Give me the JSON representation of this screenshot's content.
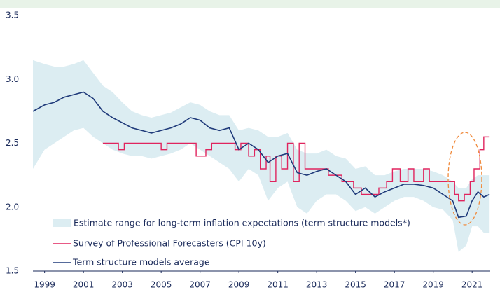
{
  "chart_data": {
    "type": "line",
    "xlim": [
      1998.4,
      2021.93
    ],
    "ylim": [
      1.5,
      3.5
    ],
    "xticks": [
      1999,
      2001,
      2003,
      2005,
      2007,
      2009,
      2011,
      2013,
      2015,
      2017,
      2019,
      2021
    ],
    "yticks": [
      1.5,
      {
        "value": 2,
        "label": "2.0"
      },
      2.5,
      {
        "value": 3,
        "label": "3.0"
      },
      3.5
    ],
    "band": {
      "name": "Estimate range for long-term inflation expectations (term structure models*)",
      "color": "#dcedf2",
      "x": [
        1998.4,
        1999,
        1999.5,
        2000,
        2000.5,
        2001,
        2001.5,
        2002,
        2002.5,
        2003,
        2003.5,
        2004,
        2004.5,
        2005,
        2005.5,
        2006,
        2006.5,
        2007,
        2007.5,
        2008,
        2008.5,
        2009,
        2009.5,
        2010,
        2010.5,
        2011,
        2011.5,
        2012,
        2012.5,
        2013,
        2013.5,
        2014,
        2014.5,
        2015,
        2015.5,
        2016,
        2016.5,
        2017,
        2017.5,
        2018,
        2018.5,
        2019,
        2019.5,
        2020,
        2020.3,
        2020.7,
        2021,
        2021.3,
        2021.6,
        2021.9
      ],
      "low": [
        2.3,
        2.45,
        2.5,
        2.55,
        2.6,
        2.62,
        2.55,
        2.5,
        2.45,
        2.42,
        2.4,
        2.4,
        2.38,
        2.4,
        2.42,
        2.45,
        2.5,
        2.45,
        2.4,
        2.35,
        2.3,
        2.2,
        2.3,
        2.25,
        2.05,
        2.15,
        2.2,
        2.0,
        1.95,
        2.05,
        2.1,
        2.1,
        2.05,
        1.97,
        2.0,
        1.95,
        2.0,
        2.05,
        2.08,
        2.08,
        2.05,
        2.0,
        1.98,
        1.9,
        1.65,
        1.7,
        1.85,
        1.85,
        1.8,
        1.8
      ],
      "high": [
        3.15,
        3.12,
        3.1,
        3.1,
        3.12,
        3.15,
        3.05,
        2.95,
        2.9,
        2.82,
        2.75,
        2.72,
        2.7,
        2.72,
        2.74,
        2.78,
        2.82,
        2.8,
        2.75,
        2.72,
        2.72,
        2.6,
        2.62,
        2.6,
        2.55,
        2.55,
        2.58,
        2.45,
        2.42,
        2.42,
        2.45,
        2.4,
        2.38,
        2.3,
        2.32,
        2.25,
        2.25,
        2.28,
        2.3,
        2.3,
        2.3,
        2.28,
        2.25,
        2.2,
        2.15,
        2.15,
        2.22,
        2.25,
        2.25,
        2.25
      ]
    },
    "series": [
      {
        "name": "Survey of Professional Forecasters (CPI 10y)",
        "color": "#e0245e",
        "step": true,
        "x": [
          2002,
          2002.8,
          2003.1,
          2005,
          2005.3,
          2006.8,
          2007.3,
          2007.6,
          2008.8,
          2009.1,
          2009.5,
          2009.8,
          2010.1,
          2010.4,
          2010.6,
          2010.9,
          2011.2,
          2011.5,
          2011.8,
          2012.1,
          2012.4,
          2013.6,
          2014.3,
          2014.9,
          2015.3,
          2016.2,
          2016.6,
          2016.9,
          2017.3,
          2017.7,
          2018,
          2018.5,
          2018.8,
          2020.1,
          2020.3,
          2020.6,
          2020.9,
          2021.1,
          2021.4,
          2021.6,
          2021.9
        ],
        "values": [
          2.5,
          2.45,
          2.5,
          2.45,
          2.5,
          2.4,
          2.45,
          2.5,
          2.45,
          2.5,
          2.4,
          2.45,
          2.3,
          2.4,
          2.2,
          2.4,
          2.3,
          2.5,
          2.2,
          2.5,
          2.3,
          2.25,
          2.2,
          2.15,
          2.1,
          2.15,
          2.2,
          2.3,
          2.2,
          2.3,
          2.2,
          2.3,
          2.2,
          2.1,
          2.05,
          2.1,
          2.2,
          2.3,
          2.45,
          2.55,
          2.55
        ]
      },
      {
        "name": "Term structure models average",
        "color": "#1f3a7a",
        "step": false,
        "x": [
          1998.4,
          1999,
          1999.5,
          2000,
          2000.5,
          2001,
          2001.5,
          2002,
          2002.5,
          2003,
          2003.5,
          2004,
          2004.5,
          2005,
          2005.5,
          2006,
          2006.5,
          2007,
          2007.5,
          2008,
          2008.5,
          2009,
          2009.5,
          2010,
          2010.5,
          2011,
          2011.5,
          2012,
          2012.5,
          2013,
          2013.5,
          2014,
          2014.5,
          2015,
          2015.5,
          2016,
          2016.5,
          2017,
          2017.5,
          2018,
          2018.5,
          2019,
          2019.5,
          2020,
          2020.3,
          2020.7,
          2021,
          2021.3,
          2021.6,
          2021.9
        ],
        "values": [
          2.75,
          2.8,
          2.82,
          2.86,
          2.88,
          2.9,
          2.85,
          2.75,
          2.7,
          2.66,
          2.62,
          2.6,
          2.58,
          2.6,
          2.62,
          2.65,
          2.7,
          2.68,
          2.62,
          2.6,
          2.62,
          2.45,
          2.5,
          2.45,
          2.35,
          2.4,
          2.42,
          2.27,
          2.25,
          2.28,
          2.3,
          2.25,
          2.2,
          2.1,
          2.15,
          2.08,
          2.12,
          2.15,
          2.18,
          2.18,
          2.17,
          2.15,
          2.1,
          2.05,
          1.92,
          1.93,
          2.05,
          2.12,
          2.08,
          2.1
        ]
      }
    ]
  }
}
